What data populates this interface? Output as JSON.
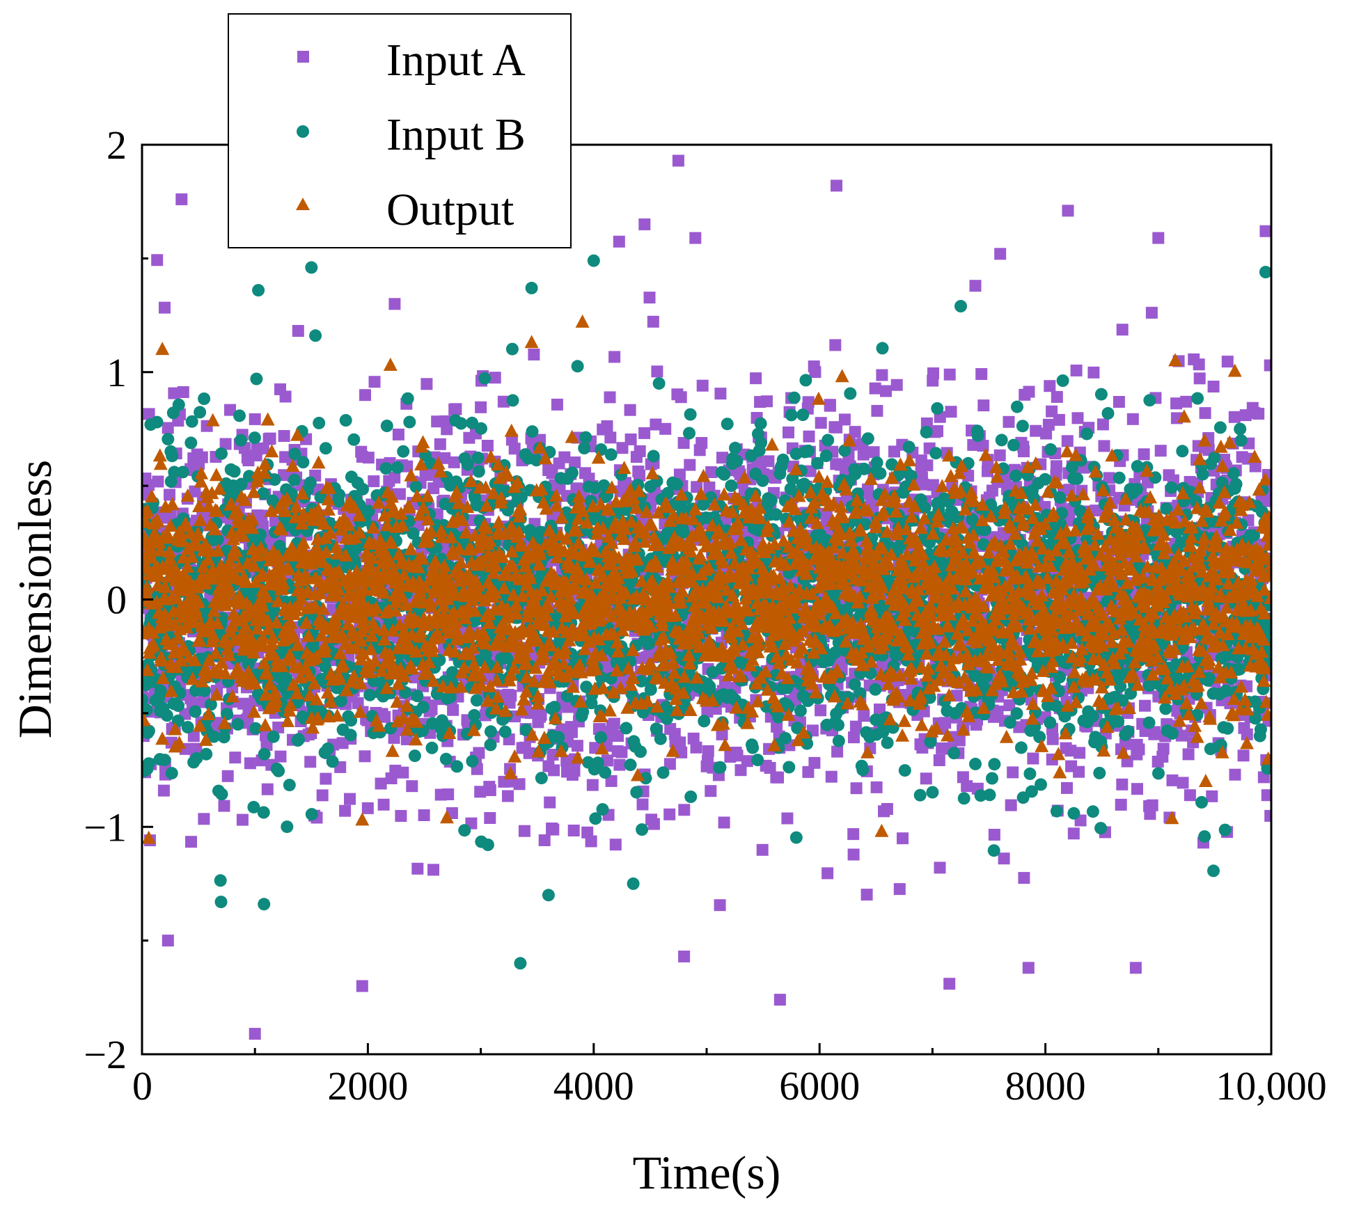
{
  "chart_data": {
    "type": "scatter",
    "title": "",
    "xlabel": "Time(s)",
    "ylabel": "Dimensionless",
    "xlim": [
      0,
      10000
    ],
    "ylim": [
      -2,
      2
    ],
    "xticks": [
      0,
      2000,
      4000,
      6000,
      8000,
      10000
    ],
    "xtick_labels": [
      "0",
      "2000",
      "4000",
      "6000",
      "8000",
      "10,000"
    ],
    "yticks": [
      -2,
      -1,
      0,
      1,
      2
    ],
    "ytick_labels": [
      "−2",
      "−1",
      "0",
      "1",
      "2"
    ],
    "grid": false,
    "legend_position": "top-left",
    "series": [
      {
        "name": "Input A",
        "marker": "square",
        "color": "#9b59d0",
        "n_points": 10000,
        "approx_std": 0.42,
        "outliers": [
          {
            "x": 350,
            "y": 1.76
          },
          {
            "x": 4750,
            "y": 1.93
          },
          {
            "x": 6150,
            "y": 1.82
          },
          {
            "x": 8200,
            "y": 1.71
          },
          {
            "x": 9950,
            "y": 1.62
          },
          {
            "x": 4450,
            "y": 1.65
          },
          {
            "x": 4900,
            "y": 1.59
          },
          {
            "x": 9000,
            "y": 1.59
          },
          {
            "x": 7600,
            "y": 1.52
          },
          {
            "x": 1000,
            "y": -1.91
          },
          {
            "x": 1950,
            "y": -1.7
          },
          {
            "x": 5650,
            "y": -1.76
          },
          {
            "x": 7150,
            "y": -1.69
          },
          {
            "x": 7850,
            "y": -1.62
          },
          {
            "x": 8800,
            "y": -1.62
          },
          {
            "x": 4800,
            "y": -1.57
          },
          {
            "x": 230,
            "y": -1.5
          }
        ]
      },
      {
        "name": "Input B",
        "marker": "circle",
        "color": "#0e8a7e",
        "n_points": 10000,
        "approx_std": 0.34,
        "outliers": [
          {
            "x": 1500,
            "y": 1.46
          },
          {
            "x": 4000,
            "y": 1.49
          },
          {
            "x": 9950,
            "y": 1.44
          },
          {
            "x": 1030,
            "y": 1.36
          },
          {
            "x": 3450,
            "y": 1.37
          },
          {
            "x": 7250,
            "y": 1.29
          },
          {
            "x": 3350,
            "y": -1.6
          },
          {
            "x": 4350,
            "y": -1.25
          },
          {
            "x": 3600,
            "y": -1.3
          },
          {
            "x": 700,
            "y": -1.33
          },
          {
            "x": 1080,
            "y": -1.34
          }
        ]
      },
      {
        "name": "Output",
        "marker": "triangle",
        "color": "#c05a00",
        "n_points": 10000,
        "approx_std": 0.26,
        "outliers": [
          {
            "x": 3450,
            "y": 1.13
          },
          {
            "x": 180,
            "y": 1.1
          },
          {
            "x": 3900,
            "y": 1.22
          },
          {
            "x": 2200,
            "y": 1.03
          },
          {
            "x": 6200,
            "y": 0.98
          },
          {
            "x": 9150,
            "y": 1.05
          },
          {
            "x": 60,
            "y": -1.05
          },
          {
            "x": 6550,
            "y": -1.02
          },
          {
            "x": 2700,
            "y": -0.96
          },
          {
            "x": 1950,
            "y": -0.97
          }
        ]
      }
    ]
  }
}
